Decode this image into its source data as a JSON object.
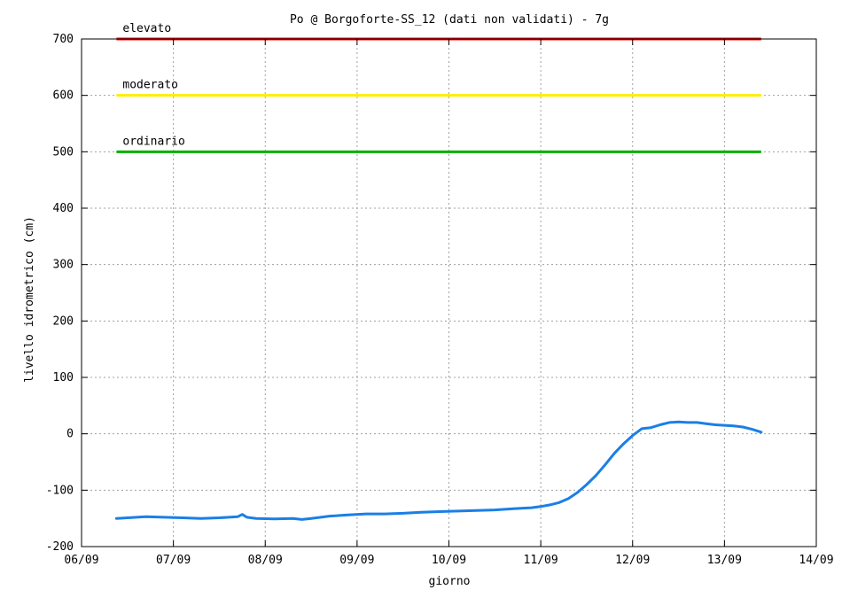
{
  "chart_data": {
    "type": "line",
    "title": "Po @  Borgoforte-SS_12 (dati non validati) - 7g",
    "xlabel": "giorno",
    "ylabel": "livello idrometrico (cm)",
    "x_ticks": [
      "06/09",
      "07/09",
      "08/09",
      "09/09",
      "10/09",
      "11/09",
      "12/09",
      "13/09",
      "14/09"
    ],
    "xlim": [
      0,
      8
    ],
    "ylim": [
      -200,
      700
    ],
    "y_ticks": [
      -200,
      -100,
      0,
      100,
      200,
      300,
      400,
      500,
      600,
      700
    ],
    "grid": true,
    "thresholds": [
      {
        "label": "elevato",
        "value": 700,
        "color": "#ff0000"
      },
      {
        "label": "moderato",
        "value": 600,
        "color": "#ffee00"
      },
      {
        "label": "ordinario",
        "value": 500,
        "color": "#00b000"
      }
    ],
    "series": [
      {
        "color": "#1a7fe6",
        "x": [
          0.38,
          0.5,
          0.7,
          0.9,
          1.1,
          1.3,
          1.5,
          1.7,
          1.75,
          1.8,
          1.9,
          2.1,
          2.3,
          2.4,
          2.5,
          2.7,
          2.9,
          3.1,
          3.3,
          3.5,
          3.7,
          3.9,
          4.1,
          4.3,
          4.5,
          4.7,
          4.9,
          5.0,
          5.1,
          5.2,
          5.3,
          5.4,
          5.5,
          5.6,
          5.7,
          5.8,
          5.9,
          6.0,
          6.1,
          6.2,
          6.3,
          6.4,
          6.5,
          6.6,
          6.7,
          6.8,
          6.9,
          7.0,
          7.1,
          7.2,
          7.3,
          7.4
        ],
        "y": [
          -150,
          -149,
          -147,
          -148,
          -149,
          -150,
          -149,
          -147,
          -143,
          -148,
          -150,
          -151,
          -150,
          -152,
          -150,
          -146,
          -144,
          -142,
          -142,
          -141,
          -139,
          -138,
          -137,
          -136,
          -135,
          -133,
          -131,
          -129,
          -126,
          -122,
          -115,
          -104,
          -90,
          -74,
          -55,
          -35,
          -18,
          -3,
          9,
          11,
          16,
          20,
          21,
          20,
          20,
          18,
          16,
          15,
          14,
          12,
          8,
          3
        ]
      }
    ]
  }
}
